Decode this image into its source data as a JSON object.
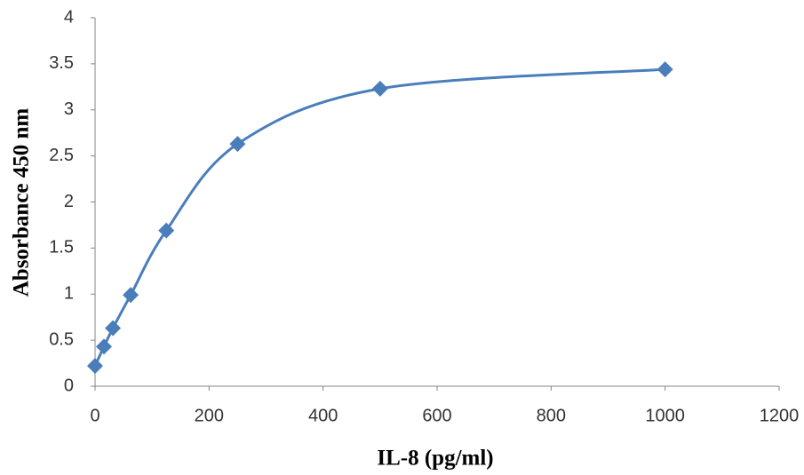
{
  "chart_data": {
    "type": "scatter",
    "xlabel": "IL-8 (pg/ml)",
    "ylabel": "Absorbance 450 nm",
    "series": [
      {
        "color": "#4a7ebb",
        "x": [
          0,
          15.6,
          31.25,
          62.5,
          125,
          250,
          500,
          1000
        ],
        "values": [
          0.22,
          0.43,
          0.63,
          0.99,
          1.69,
          2.63,
          3.23,
          3.44
        ]
      }
    ],
    "xlim": [
      0,
      1200
    ],
    "xticks": [
      0,
      200,
      400,
      600,
      800,
      1000,
      1200
    ],
    "ylim": [
      0,
      4
    ],
    "yticks": [
      0,
      0.5,
      1,
      1.5,
      2,
      2.5,
      3,
      3.5,
      4
    ],
    "smooth": true
  }
}
